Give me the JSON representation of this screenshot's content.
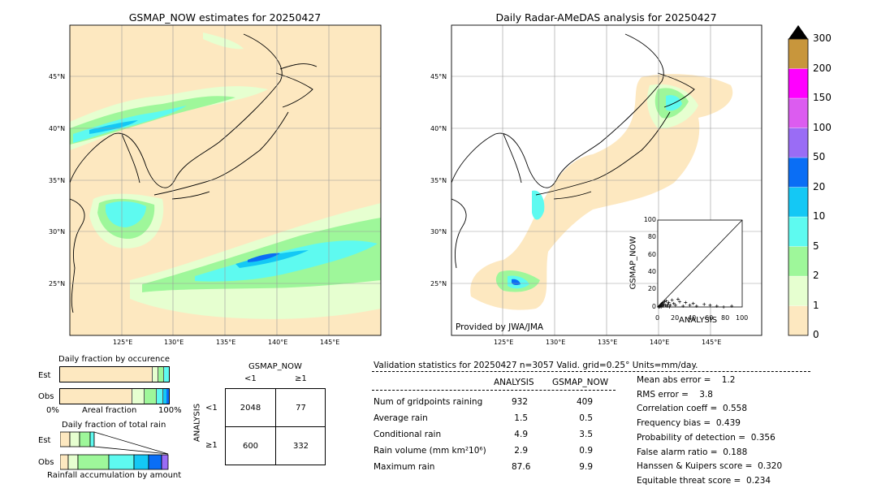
{
  "left_map": {
    "title": "GSMAP_NOW estimates for 20250427",
    "lat_ticks": [
      "45°N",
      "40°N",
      "35°N",
      "30°N",
      "25°N"
    ],
    "lon_ticks": [
      "125°E",
      "130°E",
      "135°E",
      "140°E",
      "145°E"
    ]
  },
  "right_map": {
    "title": "Daily Radar-AMeDAS analysis for 20250427",
    "lat_ticks": [
      "45°N",
      "40°N",
      "35°N",
      "30°N",
      "25°N"
    ],
    "lon_ticks": [
      "125°E",
      "130°E",
      "135°E",
      "140°E",
      "145°E"
    ],
    "credit": "Provided by JWA/JMA"
  },
  "scatter": {
    "xlabel": "ANALYSIS",
    "ylabel": "GSMAP_NOW",
    "ticks": [
      "0",
      "20",
      "40",
      "60",
      "80",
      "100"
    ]
  },
  "colorbar": {
    "labels": [
      "0",
      "1",
      "2",
      "5",
      "10",
      "20",
      "50",
      "100",
      "150",
      "200",
      "300"
    ],
    "colors": [
      "#fde8c0",
      "#e6ffd0",
      "#9ef79a",
      "#5efaf0",
      "#14c8f5",
      "#0a6ef5",
      "#9a6cf5",
      "#dc5cf0",
      "#ff00ff",
      "#c8963c"
    ]
  },
  "occurrence": {
    "title": "Daily fraction by occurence",
    "row_est": "Est",
    "row_obs": "Obs",
    "axis_left": "0%",
    "axis_mid": "Areal fraction",
    "axis_right": "100%"
  },
  "total_rain": {
    "title": "Daily fraction of total rain",
    "row_est": "Est",
    "row_obs": "Obs",
    "footer": "Rainfall accumulation by amount"
  },
  "contingency": {
    "col_header": "GSMAP_NOW",
    "col_lt": "<1",
    "col_ge": "≥1",
    "row_header": "ANALYSIS",
    "row_lt": "<1",
    "row_ge": "≥1",
    "c11": "2048",
    "c12": "77",
    "c21": "600",
    "c22": "332"
  },
  "validation": {
    "header": "Validation statistics for 20250427  n=3057 Valid. grid=0.25° Units=mm/day.",
    "col_analysis": "ANALYSIS",
    "col_gsmap": "GSMAP_NOW",
    "rows": [
      {
        "label": "Num of gridpoints raining",
        "analysis": "932",
        "gsmap": "409"
      },
      {
        "label": "Average rain",
        "analysis": "1.5",
        "gsmap": "0.5"
      },
      {
        "label": "Conditional rain",
        "analysis": "4.9",
        "gsmap": "3.5"
      },
      {
        "label": "Rain volume (mm km²10⁶)",
        "analysis": "2.9",
        "gsmap": "0.9"
      },
      {
        "label": "Maximum rain",
        "analysis": "87.6",
        "gsmap": "9.9"
      }
    ],
    "scores": [
      "Mean abs error =    1.2",
      "RMS error =    3.8",
      "Correlation coeff =  0.558",
      "Frequency bias =  0.439",
      "Probability of detection =  0.356",
      "False alarm ratio =  0.188",
      "Hanssen & Kuipers score =  0.320",
      "Equitable threat score =  0.234"
    ]
  },
  "chart_data": {
    "type": "scatter",
    "title": "",
    "xlabel": "ANALYSIS",
    "ylabel": "GSMAP_NOW",
    "xlim": [
      0,
      100
    ],
    "ylim": [
      0,
      100
    ],
    "diagonal": true,
    "points": [
      {
        "x": 1,
        "y": 0
      },
      {
        "x": 2,
        "y": 1
      },
      {
        "x": 3,
        "y": 2
      },
      {
        "x": 4,
        "y": 3
      },
      {
        "x": 5,
        "y": 4
      },
      {
        "x": 6,
        "y": 5
      },
      {
        "x": 7,
        "y": 3
      },
      {
        "x": 8,
        "y": 6
      },
      {
        "x": 9,
        "y": 2
      },
      {
        "x": 10,
        "y": 7
      },
      {
        "x": 12,
        "y": 3
      },
      {
        "x": 13,
        "y": 5
      },
      {
        "x": 15,
        "y": 2
      },
      {
        "x": 17,
        "y": 8
      },
      {
        "x": 19,
        "y": 4
      },
      {
        "x": 21,
        "y": 2
      },
      {
        "x": 24,
        "y": 9
      },
      {
        "x": 26,
        "y": 6
      },
      {
        "x": 30,
        "y": 1
      },
      {
        "x": 33,
        "y": 5
      },
      {
        "x": 38,
        "y": 2
      },
      {
        "x": 42,
        "y": 4
      },
      {
        "x": 46,
        "y": 1
      },
      {
        "x": 55,
        "y": 3
      },
      {
        "x": 62,
        "y": 2
      },
      {
        "x": 70,
        "y": 1
      },
      {
        "x": 78,
        "y": 0
      },
      {
        "x": 87.6,
        "y": 1
      },
      {
        "x": 2,
        "y": 0
      },
      {
        "x": 3,
        "y": 1
      },
      {
        "x": 4,
        "y": 0
      },
      {
        "x": 5,
        "y": 2
      },
      {
        "x": 6,
        "y": 1
      },
      {
        "x": 11,
        "y": 1
      },
      {
        "x": 14,
        "y": 0
      }
    ]
  }
}
